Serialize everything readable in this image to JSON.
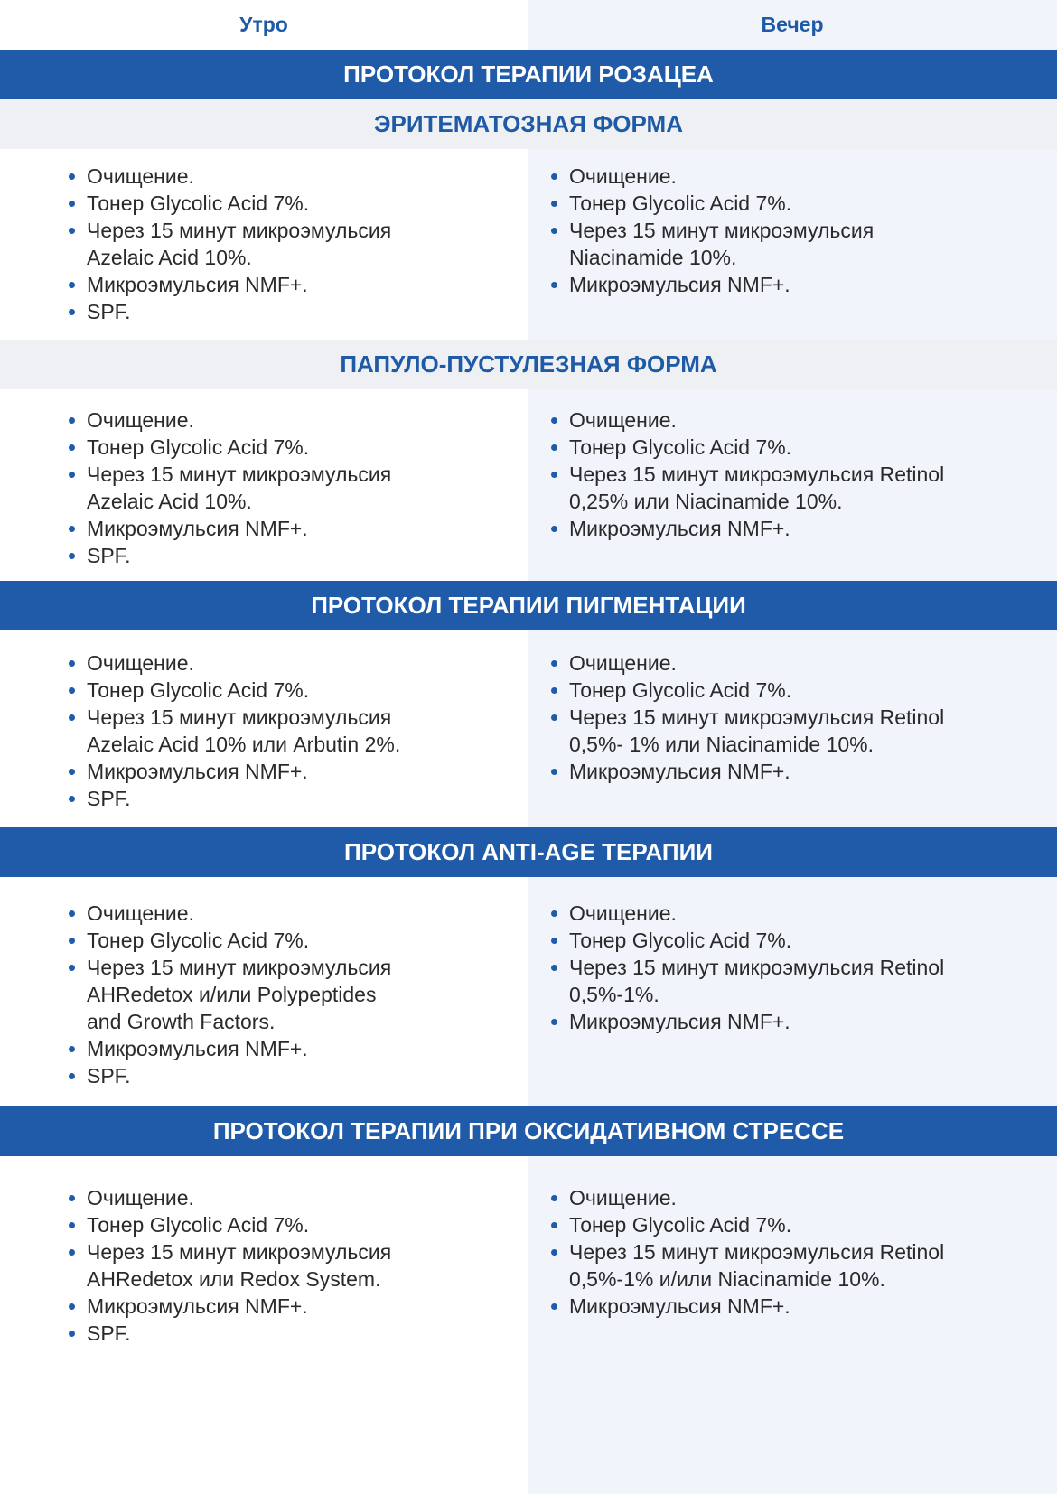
{
  "columns": {
    "morning": "Утро",
    "evening": "Вечер"
  },
  "colors": {
    "accent": "#1f5ba8",
    "right_column_bg": "#f1f4fa",
    "subheader_bg": "#eef0f3"
  },
  "sections": [
    {
      "title": "ПРОТОКОЛ ТЕРАПИИ РОЗАЦЕА",
      "type": "bar"
    },
    {
      "title": "ЭРИТЕМАТОЗНАЯ ФОРМА",
      "type": "sub",
      "morning": [
        "Очищение.",
        "Тонер Glycolic Acid 7%.",
        "Через 15 минут микроэмульсия Azelaic Acid 10%.",
        "Микроэмульсия NMF+.",
        "SPF."
      ],
      "evening": [
        "Очищение.",
        "Тонер Glycolic Acid 7%.",
        "Через 15 минут микроэмульсия Niacinamide 10%.",
        "Микроэмульсия NMF+."
      ]
    },
    {
      "title": "ПАПУЛО-ПУСТУЛЕЗНАЯ ФОРМА",
      "type": "sub",
      "morning": [
        "Очищение.",
        "Тонер Glycolic Acid 7%.",
        "Через 15 минут микроэмульсия Azelaic Acid 10%.",
        "Микроэмульсия NMF+.",
        "SPF."
      ],
      "evening": [
        "Очищение.",
        "Тонер Glycolic Acid 7%.",
        "Через 15 минут микроэмульсия Retinol 0,25% или Niacinamide 10%.",
        "Микроэмульсия NMF+."
      ]
    },
    {
      "title": "ПРОТОКОЛ ТЕРАПИИ ПИГМЕНТАЦИИ",
      "type": "bar",
      "morning": [
        "Очищение.",
        "Тонер Glycolic Acid 7%.",
        "Через 15 минут микроэмульсия Azelaic Acid 10% или Arbutin 2%.",
        "Микроэмульсия NMF+.",
        "SPF."
      ],
      "evening": [
        "Очищение.",
        "Тонер Glycolic Acid 7%.",
        "Через 15 минут микроэмульсия Retinol 0,5%- 1% или Niacinamide 10%.",
        "Микроэмульсия NMF+."
      ]
    },
    {
      "title": "ПРОТОКОЛ ANTI-AGE ТЕРАПИИ",
      "type": "bar",
      "morning": [
        "Очищение.",
        "Тонер Glycolic Acid 7%.",
        "Через 15 минут микроэмульсия AHRedetox и/или Polypeptides and Growth Factors.",
        "Микроэмульсия NMF+.",
        "SPF."
      ],
      "evening": [
        "Очищение.",
        "Тонер Glycolic Acid 7%.",
        "Через 15 минут микроэмульсия Retinol 0,5%-1%.",
        "Микроэмульсия NMF+."
      ]
    },
    {
      "title": "ПРОТОКОЛ ТЕРАПИИ ПРИ ОКСИДАТИВНОМ СТРЕССЕ",
      "type": "bar",
      "morning": [
        "Очищение.",
        "Тонер Glycolic Acid 7%.",
        "Через 15 минут микроэмульсия AHRedetox или Redox System.",
        "Микроэмульсия NMF+.",
        "SPF."
      ],
      "evening": [
        "Очищение.",
        "Тонер Glycolic Acid 7%.",
        "Через 15 минут микроэмульсия Retinol 0,5%-1% и/или Niacinamide 10%.",
        "Микроэмульсия NMF+."
      ]
    }
  ]
}
